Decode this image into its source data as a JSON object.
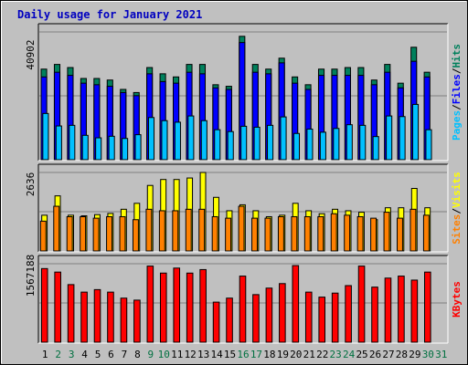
{
  "chart_data": {
    "type": "bar",
    "title": "Daily usage for January 2021",
    "categories": [
      "1",
      "2",
      "3",
      "4",
      "5",
      "6",
      "7",
      "8",
      "9",
      "10",
      "11",
      "12",
      "13",
      "14",
      "15",
      "16",
      "17",
      "18",
      "19",
      "20",
      "21",
      "22",
      "23",
      "24",
      "25",
      "26",
      "27",
      "28",
      "29",
      "30",
      "31"
    ],
    "weekend_days": [
      2,
      3,
      9,
      10,
      16,
      17,
      23,
      24,
      30,
      31
    ],
    "colors": {
      "background": "#c0c0c0",
      "plot_background": "#c0c0c0",
      "grid": "#808080",
      "title": "#0000c0",
      "weekday_label": "#000000",
      "weekend_label": "#007040",
      "hits": "#00805c",
      "files": "#0000ff",
      "pages": "#00c0ff",
      "visits": "#ffff00",
      "sites": "#ff8000",
      "kbytes": "#ff0000"
    },
    "panels": [
      {
        "id": "hits_files_pages",
        "axis_max_label": "40902",
        "ylim": [
          0,
          40902
        ],
        "side_labels": [
          "Pages",
          "/",
          "Files",
          "/",
          "Hits"
        ],
        "side_label_colors": [
          "#00c0ff",
          "#000000",
          "#0000ff",
          "#000000",
          "#00805c"
        ],
        "series": [
          {
            "name": "Hits",
            "values": [
              29000,
              30500,
              29500,
              26000,
              26000,
              25500,
              22500,
              21500,
              29500,
              27500,
              26500,
              30500,
              30500,
              24000,
              23500,
              39500,
              30500,
              29000,
              32500,
              26500,
              24000,
              29000,
              29000,
              29500,
              29500,
              25500,
              30500,
              24500,
              36000,
              28000,
              0
            ]
          },
          {
            "name": "Files",
            "values": [
              26500,
              28000,
              27000,
              24500,
              24000,
              23500,
              21500,
              20500,
              27500,
              25000,
              24500,
              28000,
              27500,
              23000,
              22500,
              37500,
              28000,
              27500,
              31000,
              24500,
              22500,
              27000,
              27000,
              27000,
              27000,
              24000,
              28000,
              23000,
              31500,
              26500,
              0
            ]
          },
          {
            "name": "Pages",
            "values": [
              14800,
              10800,
              11000,
              7800,
              7000,
              7500,
              6800,
              8000,
              13500,
              12500,
              12000,
              14000,
              12500,
              9600,
              9000,
              10700,
              10400,
              11000,
              13700,
              8400,
              9800,
              8800,
              10000,
              11200,
              11000,
              7400,
              14000,
              13800,
              17700,
              9600,
              0
            ]
          }
        ]
      },
      {
        "id": "visits_sites",
        "axis_max_label": "2636",
        "ylim": [
          0,
          2636
        ],
        "side_labels": [
          "Sites",
          "/",
          "Visits"
        ],
        "side_label_colors": [
          "#ff8000",
          "#000000",
          "#ffff00"
        ],
        "series": [
          {
            "name": "Visits",
            "values": [
              1200,
              1850,
              1200,
              1180,
              1220,
              1260,
              1400,
              1600,
              2200,
              2400,
              2400,
              2450,
              2636,
              1800,
              1350,
              1550,
              1350,
              1150,
              1200,
              1600,
              1350,
              1250,
              1400,
              1350,
              1300,
              1050,
              1450,
              1450,
              2100,
              1450,
              0
            ]
          },
          {
            "name": "Sites",
            "values": [
              1000,
              1500,
              1150,
              1150,
              1100,
              1150,
              1150,
              1050,
              1400,
              1350,
              1350,
              1400,
              1400,
              1150,
              1100,
              1500,
              1100,
              1100,
              1150,
              1150,
              1150,
              1150,
              1250,
              1200,
              1150,
              1100,
              1300,
              1100,
              1400,
              1200,
              0
            ]
          }
        ]
      },
      {
        "id": "kbytes",
        "axis_max_label": "1567188",
        "ylim": [
          0,
          1567188
        ],
        "side_labels": [
          "KBytes"
        ],
        "side_label_colors": [
          "#ff0000"
        ],
        "series": [
          {
            "name": "KBytes",
            "values": [
              1470000,
              1400000,
              1150000,
              1000000,
              1050000,
              1000000,
              880000,
              840000,
              1520000,
              1380000,
              1480000,
              1380000,
              1450000,
              800000,
              880000,
              1320000,
              950000,
              1080000,
              1170000,
              1530000,
              1000000,
              900000,
              980000,
              1130000,
              1520000,
              1100000,
              1280000,
              1320000,
              1240000,
              1400000,
              0
            ]
          }
        ]
      }
    ]
  }
}
